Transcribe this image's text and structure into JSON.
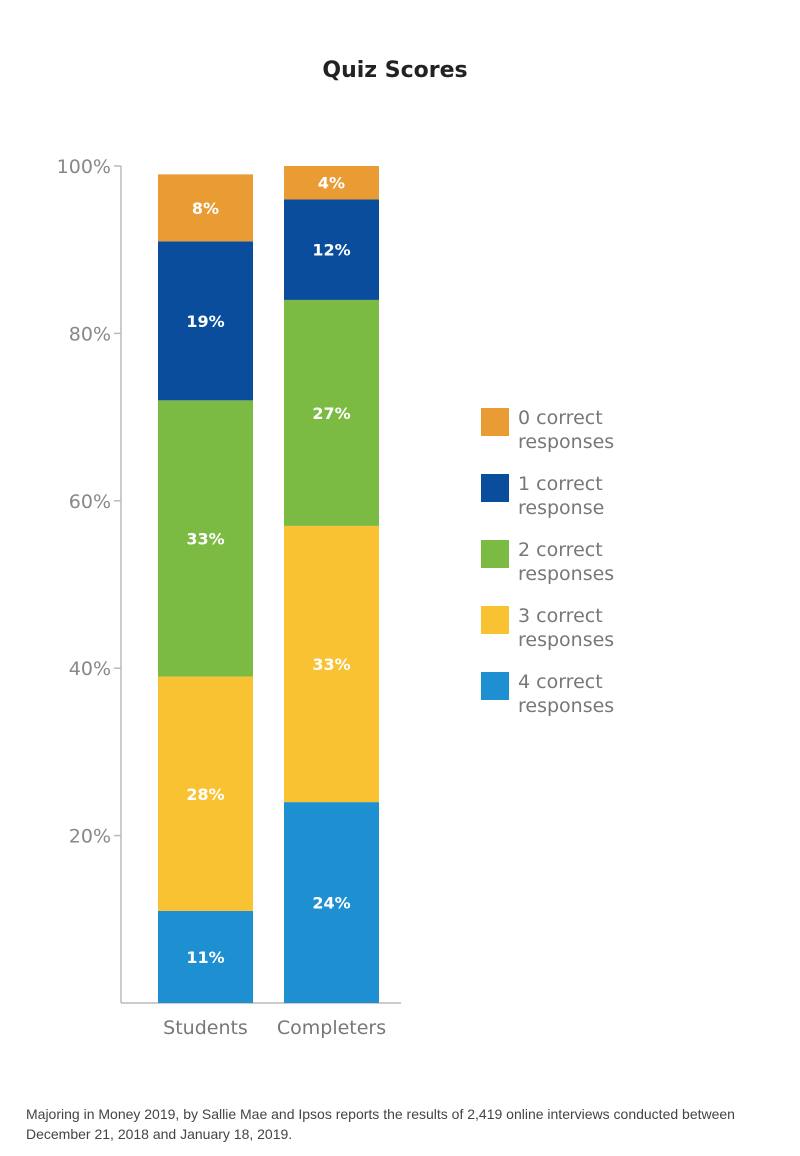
{
  "chart_data": {
    "type": "bar",
    "stacked": true,
    "title": "Quiz Scores",
    "categories": [
      "Students",
      "Completers"
    ],
    "series": [
      {
        "name": "4 correct responses",
        "values": [
          11,
          24
        ],
        "labels": [
          "11%",
          "24%"
        ],
        "color": "#1E8FD0"
      },
      {
        "name": "3 correct responses",
        "values": [
          28,
          33
        ],
        "labels": [
          "28%",
          "33%"
        ],
        "color": "#F9C232"
      },
      {
        "name": "2 correct responses",
        "values": [
          33,
          27
        ],
        "labels": [
          "33%",
          "27%"
        ],
        "color": "#7CBB43"
      },
      {
        "name": "1 correct response",
        "values": [
          19,
          12
        ],
        "labels": [
          "19%",
          "12%"
        ],
        "color": "#0A4D9C"
      },
      {
        "name": "0 correct responses",
        "values": [
          8,
          4
        ],
        "labels": [
          "8%",
          "4%"
        ],
        "color": "#E99B34"
      }
    ],
    "yticks": [
      20,
      40,
      60,
      80,
      100
    ],
    "ytick_labels": [
      "20%",
      "40%",
      "60%",
      "80%",
      "100%"
    ],
    "ylim": [
      0,
      100
    ],
    "xlabel": "",
    "ylabel": "",
    "grid": false,
    "legend_position": "right",
    "legend": [
      {
        "label": "0 correct responses",
        "color": "#E99B34"
      },
      {
        "label": "1 correct response",
        "color": "#0A4D9C"
      },
      {
        "label": "2 correct responses",
        "color": "#7CBB43"
      },
      {
        "label": "3 correct responses",
        "color": "#F9C232"
      },
      {
        "label": "4 correct responses",
        "color": "#1E8FD0"
      }
    ]
  },
  "footnote": "Majoring in Money 2019, by Sallie Mae and Ipsos reports the results of 2,419 online interviews conducted between December 21, 2018 and January 18, 2019."
}
